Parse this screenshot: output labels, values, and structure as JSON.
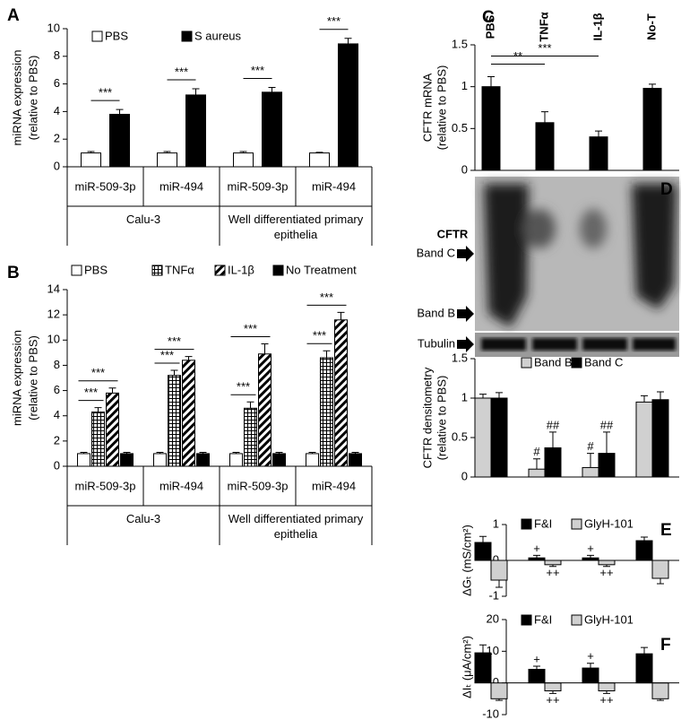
{
  "chart_data": [
    {
      "type": "bar",
      "panel": "A",
      "ylabel": [
        "miRNA expression",
        "(relative to PBS)"
      ],
      "categories": [
        "miR-509-3p",
        "miR-494",
        "miR-509-3p",
        "miR-494"
      ],
      "groups": [
        "Calu-3",
        "Well differentiated primary epithelia"
      ],
      "series": [
        {
          "name": "PBS",
          "color": "#ffffff",
          "values": [
            1,
            1,
            1,
            1
          ],
          "errors": [
            0.1,
            0.1,
            0.1,
            0.05
          ]
        },
        {
          "name": "S aureus",
          "color": "#000000",
          "values": [
            3.8,
            5.2,
            5.4,
            8.9
          ],
          "errors": [
            0.35,
            0.45,
            0.35,
            0.4
          ]
        }
      ],
      "ylim": [
        0,
        10
      ],
      "yticks": [
        0,
        2,
        4,
        6,
        8,
        10
      ],
      "annotations": [
        "***",
        "***",
        "***",
        "***"
      ]
    },
    {
      "type": "bar",
      "panel": "B",
      "ylabel": [
        "miRNA expression",
        "(relative to PBS)"
      ],
      "categories": [
        "miR-509-3p",
        "miR-494",
        "miR-509-3p",
        "miR-494"
      ],
      "groups": [
        "Calu-3",
        "Well differentiated primary epithelia"
      ],
      "series": [
        {
          "name": "PBS",
          "color": "#ffffff",
          "values": [
            1,
            1,
            1,
            1
          ],
          "errors": [
            0.1,
            0.1,
            0.1,
            0.1
          ]
        },
        {
          "name": "TNFα",
          "color": "#000000",
          "pattern": "grid",
          "values": [
            4.3,
            7.2,
            4.6,
            8.6
          ],
          "errors": [
            0.35,
            0.4,
            0.5,
            0.55
          ]
        },
        {
          "name": "IL-1β",
          "color": "#000000",
          "pattern": "diagonal",
          "values": [
            5.8,
            8.4,
            8.9,
            11.6
          ],
          "errors": [
            0.4,
            0.3,
            0.8,
            0.6
          ]
        },
        {
          "name": "No Treatment",
          "color": "#000000",
          "values": [
            1,
            1,
            1,
            1
          ],
          "errors": [
            0.1,
            0.1,
            0.1,
            0.1
          ]
        }
      ],
      "ylim": [
        0,
        14
      ],
      "yticks": [
        0,
        2,
        4,
        6,
        8,
        10,
        12,
        14
      ],
      "annotations": [
        "***",
        "***",
        "***",
        "***",
        "***",
        "***",
        "***",
        "***"
      ]
    },
    {
      "type": "bar",
      "panel": "C",
      "ylabel": [
        "CFTR mRNA",
        "(relative to PBS)"
      ],
      "categories": [
        "PBS",
        "TNFα",
        "IL-1β",
        "No-T"
      ],
      "series": [
        {
          "name": "CFTR mRNA",
          "color": "#000000",
          "values": [
            1,
            0.57,
            0.4,
            0.98
          ],
          "errors": [
            0.12,
            0.13,
            0.07,
            0.05
          ]
        }
      ],
      "ylim": [
        0,
        1.5
      ],
      "yticks": [
        0,
        0.5,
        1,
        1.5
      ],
      "annotations": [
        "**",
        "***"
      ]
    },
    {
      "type": "bar",
      "ylabel": [
        "CFTR densitometry",
        "(relative to PBS)"
      ],
      "series": [
        {
          "name": "Band B",
          "color": "#d0d0d0",
          "values": [
            1,
            0.1,
            0.12,
            0.95
          ],
          "errors": [
            0.05,
            0.13,
            0.18,
            0.08
          ]
        },
        {
          "name": "Band C",
          "color": "#000000",
          "values": [
            1,
            0.37,
            0.3,
            0.98
          ],
          "errors": [
            0.07,
            0.2,
            0.27,
            0.1
          ]
        }
      ],
      "ylim": [
        0,
        1.5
      ],
      "yticks": [
        0,
        0.5,
        1,
        1.5
      ],
      "annotations": [
        "#",
        "##",
        "#",
        "##"
      ]
    },
    {
      "type": "bar",
      "panel": "E",
      "ylabel": [
        "ΔGₜ (mS/cm²)"
      ],
      "series": [
        {
          "name": "F&I",
          "color": "#000000",
          "values": [
            0.5,
            0.07,
            0.07,
            0.55
          ],
          "errors": [
            0.17,
            0.07,
            0.07,
            0.1
          ]
        },
        {
          "name": "GlyH-101",
          "color": "#d0d0d0",
          "values": [
            -0.55,
            -0.12,
            -0.12,
            -0.5
          ],
          "errors": [
            0.2,
            0.05,
            0.05,
            0.15
          ]
        }
      ],
      "ylim": [
        -1,
        1
      ],
      "yticks": [
        -1,
        0,
        1
      ],
      "annotations": [
        "+",
        "++",
        "+",
        "++"
      ]
    },
    {
      "type": "bar",
      "panel": "F",
      "ylabel": [
        "ΔIₜ (μA/cm²)"
      ],
      "series": [
        {
          "name": "F&I",
          "color": "#000000",
          "values": [
            9.5,
            4.3,
            4.7,
            9.2
          ],
          "errors": [
            2.5,
            1,
            1.5,
            2
          ]
        },
        {
          "name": "GlyH-101",
          "color": "#d0d0d0",
          "values": [
            -5,
            -2.5,
            -2.5,
            -5
          ],
          "errors": [
            0.5,
            0.8,
            0.8,
            0.5
          ]
        }
      ],
      "ylim": [
        -10,
        20
      ],
      "yticks": [
        -10,
        0,
        10,
        20
      ],
      "annotations": [
        "+",
        "++",
        "+",
        "++"
      ]
    }
  ],
  "blot": {
    "panel": "D",
    "protein": "CFTR",
    "band_c": "Band C",
    "band_b": "Band B",
    "loading": "Tubulin"
  }
}
